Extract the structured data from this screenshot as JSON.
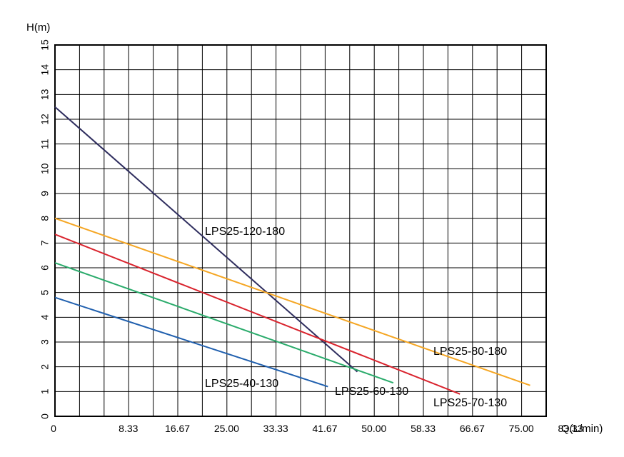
{
  "chart_data": {
    "type": "line",
    "xlabel": "Q(L/min)",
    "ylabel": "H(m)",
    "xlim": [
      0,
      83.33
    ],
    "ylim": [
      0,
      15
    ],
    "x_tick_labels": [
      "0",
      "8.33",
      "16.67",
      "25.00",
      "33.33",
      "41.67",
      "50.00",
      "58.33",
      "66.67",
      "75.00",
      "83.33"
    ],
    "y_tick_labels": [
      "0",
      "1",
      "2",
      "3",
      "4",
      "5",
      "6",
      "7",
      "8",
      "9",
      "10",
      "11",
      "12",
      "13",
      "14",
      "15"
    ],
    "grid": true,
    "series": [
      {
        "name": "LPS25-120-180",
        "color": "#2e2d5e",
        "x": [
          0,
          51.3
        ],
        "y": [
          12.5,
          1.8
        ]
      },
      {
        "name": "LPS25-80-180",
        "color": "#f5a623",
        "x": [
          0,
          80.6
        ],
        "y": [
          8.0,
          1.25
        ]
      },
      {
        "name": "LPS25-70-130",
        "color": "#d9232d",
        "x": [
          0,
          68.7
        ],
        "y": [
          7.35,
          0.9
        ]
      },
      {
        "name": "LPS25-60-130",
        "color": "#2aab6b",
        "x": [
          0,
          57.4
        ],
        "y": [
          6.2,
          1.35
        ]
      },
      {
        "name": "LPS25-40-130",
        "color": "#1f5fae",
        "x": [
          0,
          46.3
        ],
        "y": [
          4.8,
          1.2
        ]
      }
    ]
  }
}
